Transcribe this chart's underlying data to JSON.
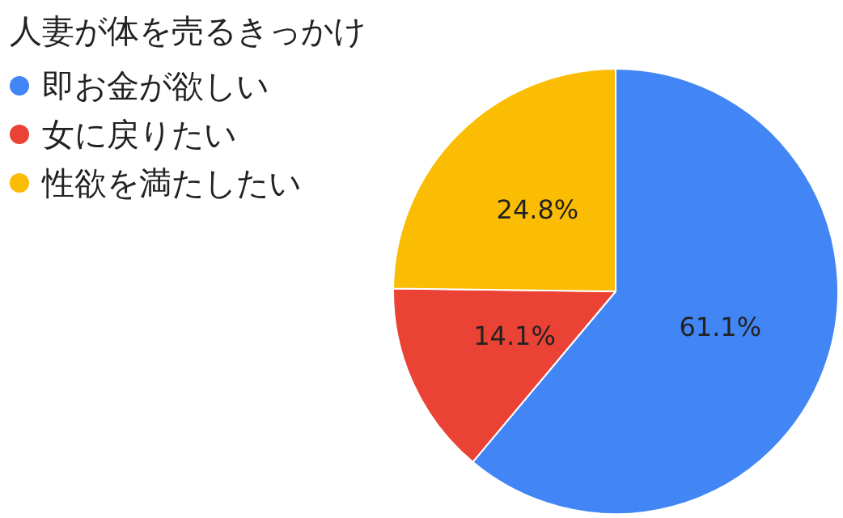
{
  "chart_data": {
    "type": "pie",
    "title": "人妻が体を売るきっかけ",
    "categories": [
      "即お金が欲しい",
      "女に戻りたい",
      "性欲を満たしたい"
    ],
    "values": [
      61.1,
      14.1,
      24.8
    ],
    "colors": [
      "#4285f4",
      "#ea4335",
      "#fbbc04"
    ],
    "value_labels": [
      "61.1%",
      "14.1%",
      "24.8%"
    ],
    "legend": "left"
  }
}
